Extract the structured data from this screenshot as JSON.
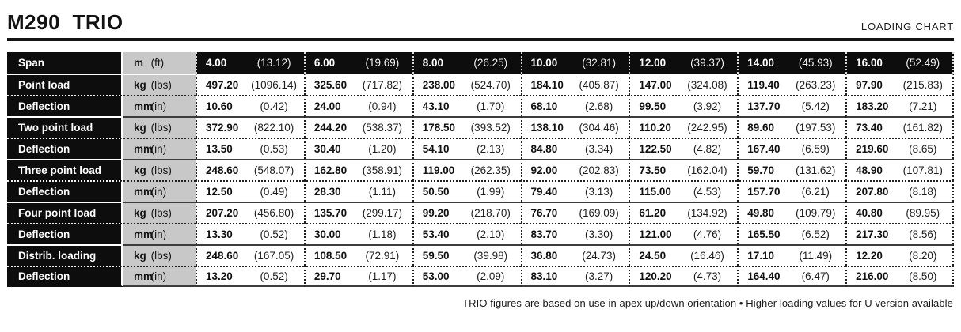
{
  "header": {
    "title": "M290  TRIO",
    "right_label": "LOADING CHART"
  },
  "table": {
    "rows": [
      {
        "type": "span",
        "label": "Span",
        "unit_metric": "m",
        "unit_imperial": "(ft)",
        "values": [
          [
            "4.00",
            "(13.12)"
          ],
          [
            "6.00",
            "(19.69)"
          ],
          [
            "8.00",
            "(26.25)"
          ],
          [
            "10.00",
            "(32.81)"
          ],
          [
            "12.00",
            "(39.37)"
          ],
          [
            "14.00",
            "(45.93)"
          ],
          [
            "16.00",
            "(52.49)"
          ]
        ]
      },
      {
        "type": "load",
        "label": "Point load",
        "unit_metric": "kg",
        "unit_imperial": "(lbs)",
        "values": [
          [
            "497.20",
            "(1096.14)"
          ],
          [
            "325.60",
            "(717.82)"
          ],
          [
            "238.00",
            "(524.70)"
          ],
          [
            "184.10",
            "(405.87)"
          ],
          [
            "147.00",
            "(324.08)"
          ],
          [
            "119.40",
            "(263.23)"
          ],
          [
            "97.90",
            "(215.83)"
          ]
        ]
      },
      {
        "type": "deflection",
        "label": "Deflection",
        "unit_metric": "mm",
        "unit_imperial": "(in)",
        "values": [
          [
            "10.60",
            "(0.42)"
          ],
          [
            "24.00",
            "(0.94)"
          ],
          [
            "43.10",
            "(1.70)"
          ],
          [
            "68.10",
            "(2.68)"
          ],
          [
            "99.50",
            "(3.92)"
          ],
          [
            "137.70",
            "(5.42)"
          ],
          [
            "183.20",
            "(7.21)"
          ]
        ]
      },
      {
        "type": "load",
        "label": "Two point load",
        "unit_metric": "kg",
        "unit_imperial": "(lbs)",
        "values": [
          [
            "372.90",
            "(822.10)"
          ],
          [
            "244.20",
            "(538.37)"
          ],
          [
            "178.50",
            "(393.52)"
          ],
          [
            "138.10",
            "(304.46)"
          ],
          [
            "110.20",
            "(242.95)"
          ],
          [
            "89.60",
            "(197.53)"
          ],
          [
            "73.40",
            "(161.82)"
          ]
        ]
      },
      {
        "type": "deflection",
        "label": "Deflection",
        "unit_metric": "mm",
        "unit_imperial": "(in)",
        "values": [
          [
            "13.50",
            "(0.53)"
          ],
          [
            "30.40",
            "(1.20)"
          ],
          [
            "54.10",
            "(2.13)"
          ],
          [
            "84.80",
            "(3.34)"
          ],
          [
            "122.50",
            "(4.82)"
          ],
          [
            "167.40",
            "(6.59)"
          ],
          [
            "219.60",
            "(8.65)"
          ]
        ]
      },
      {
        "type": "load",
        "label": "Three point load",
        "unit_metric": "kg",
        "unit_imperial": "(lbs)",
        "values": [
          [
            "248.60",
            "(548.07)"
          ],
          [
            "162.80",
            "(358.91)"
          ],
          [
            "119.00",
            "(262.35)"
          ],
          [
            "92.00",
            "(202.83)"
          ],
          [
            "73.50",
            "(162.04)"
          ],
          [
            "59.70",
            "(131.62)"
          ],
          [
            "48.90",
            "(107.81)"
          ]
        ]
      },
      {
        "type": "deflection",
        "label": "Deflection",
        "unit_metric": "mm",
        "unit_imperial": "(in)",
        "values": [
          [
            "12.50",
            "(0.49)"
          ],
          [
            "28.30",
            "(1.11)"
          ],
          [
            "50.50",
            "(1.99)"
          ],
          [
            "79.40",
            "(3.13)"
          ],
          [
            "115.00",
            "(4.53)"
          ],
          [
            "157.70",
            "(6.21)"
          ],
          [
            "207.80",
            "(8.18)"
          ]
        ]
      },
      {
        "type": "load",
        "label": "Four point load",
        "unit_metric": "kg",
        "unit_imperial": "(lbs)",
        "values": [
          [
            "207.20",
            "(456.80)"
          ],
          [
            "135.70",
            "(299.17)"
          ],
          [
            "99.20",
            "(218.70)"
          ],
          [
            "76.70",
            "(169.09)"
          ],
          [
            "61.20",
            "(134.92)"
          ],
          [
            "49.80",
            "(109.79)"
          ],
          [
            "40.80",
            "(89.95)"
          ]
        ]
      },
      {
        "type": "deflection",
        "label": "Deflection",
        "unit_metric": "mm",
        "unit_imperial": "(in)",
        "values": [
          [
            "13.30",
            "(0.52)"
          ],
          [
            "30.00",
            "(1.18)"
          ],
          [
            "53.40",
            "(2.10)"
          ],
          [
            "83.70",
            "(3.30)"
          ],
          [
            "121.00",
            "(4.76)"
          ],
          [
            "165.50",
            "(6.52)"
          ],
          [
            "217.30",
            "(8.56)"
          ]
        ]
      },
      {
        "type": "load",
        "label": "Distrib. loading",
        "unit_metric": "kg",
        "unit_imperial": "(lbs)",
        "values": [
          [
            "248.60",
            "(167.05)"
          ],
          [
            "108.50",
            "(72.91)"
          ],
          [
            "59.50",
            "(39.98)"
          ],
          [
            "36.80",
            "(24.73)"
          ],
          [
            "24.50",
            "(16.46)"
          ],
          [
            "17.10",
            "(11.49)"
          ],
          [
            "12.20",
            "(8.20)"
          ]
        ]
      },
      {
        "type": "deflection",
        "label": "Deflection",
        "unit_metric": "mm",
        "unit_imperial": "(in)",
        "values": [
          [
            "13.20",
            "(0.52)"
          ],
          [
            "29.70",
            "(1.17)"
          ],
          [
            "53.00",
            "(2.09)"
          ],
          [
            "83.10",
            "(3.27)"
          ],
          [
            "120.20",
            "(4.73)"
          ],
          [
            "164.40",
            "(6.47)"
          ],
          [
            "216.00",
            "(8.50)"
          ]
        ]
      }
    ]
  },
  "footer": {
    "note": "TRIO figures are based on use in apex up/down orientation • Higher loading values for U version available"
  },
  "colors": {
    "label_bg": "#0d0d0d",
    "unit_bg": "#c8c8c8",
    "rule": "#141414"
  }
}
